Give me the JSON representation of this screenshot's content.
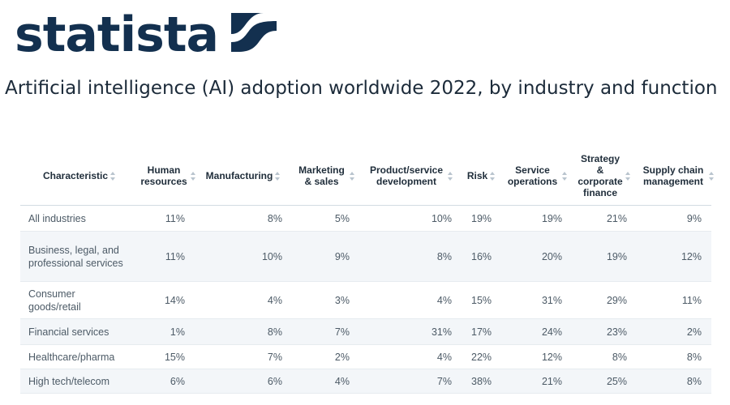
{
  "brand": {
    "name": "statista",
    "logo_icon": "statista-logo-icon",
    "color": "#13304f"
  },
  "title": "Artificial intelligence (AI) adoption worldwide 2022, by industry and function",
  "table": {
    "headers": [
      "Characteristic",
      "Human resources",
      "Manufacturing",
      "Marketing & sales",
      "Product/service development",
      "Risk",
      "Service operations",
      "Strategy & corporate finance",
      "Supply chain management"
    ],
    "rows": [
      {
        "label": "All industries",
        "values": [
          "11%",
          "8%",
          "5%",
          "10%",
          "19%",
          "19%",
          "21%",
          "9%"
        ]
      },
      {
        "label": "Business, legal, and professional services",
        "values": [
          "11%",
          "10%",
          "9%",
          "8%",
          "16%",
          "20%",
          "19%",
          "12%"
        ]
      },
      {
        "label": "Consumer goods/retail",
        "values": [
          "14%",
          "4%",
          "3%",
          "4%",
          "15%",
          "31%",
          "29%",
          "11%"
        ]
      },
      {
        "label": "Financial services",
        "values": [
          "1%",
          "8%",
          "7%",
          "31%",
          "17%",
          "24%",
          "23%",
          "2%"
        ]
      },
      {
        "label": "Healthcare/pharma",
        "values": [
          "15%",
          "7%",
          "2%",
          "4%",
          "22%",
          "12%",
          "8%",
          "8%"
        ]
      },
      {
        "label": "High tech/telecom",
        "values": [
          "6%",
          "6%",
          "4%",
          "7%",
          "38%",
          "21%",
          "25%",
          "8%"
        ]
      }
    ]
  }
}
